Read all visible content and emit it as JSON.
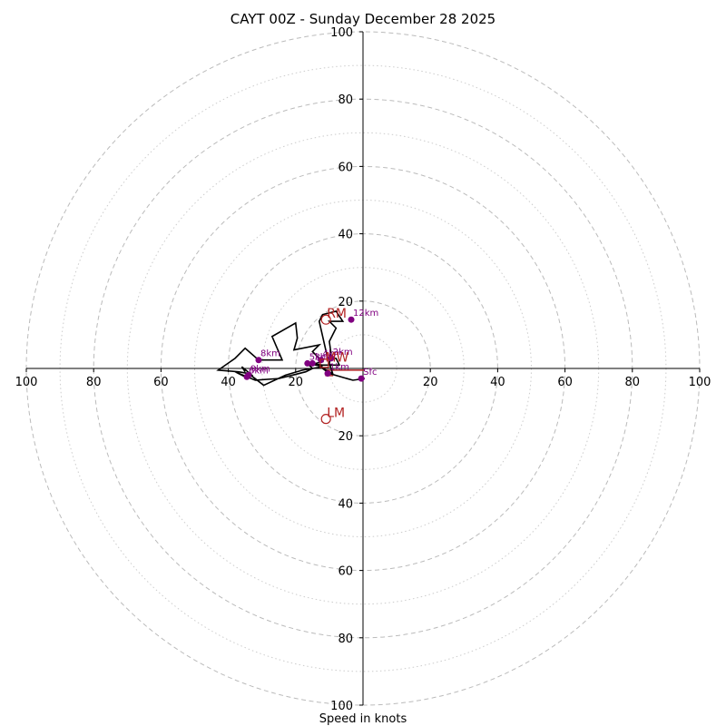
{
  "chart_data": {
    "type": "hodograph",
    "title": "CAYT 00Z - Sunday December 28 2025",
    "xlabel": "Speed in knots",
    "xlim": [
      -100,
      100
    ],
    "ylim": [
      -100,
      100
    ],
    "major_rings": [
      20,
      40,
      60,
      80,
      100
    ],
    "minor_rings": [
      10,
      30,
      50,
      70,
      90
    ],
    "x_tick_labels": [
      "100",
      "80",
      "60",
      "40",
      "20",
      "20",
      "40",
      "60",
      "80",
      "100"
    ],
    "y_tick_labels": [
      "100",
      "80",
      "60",
      "40",
      "20",
      "20",
      "40",
      "60",
      "80",
      "100"
    ],
    "x_tick_values": [
      -100,
      -80,
      -60,
      -40,
      -20,
      20,
      40,
      60,
      80,
      100
    ],
    "y_tick_values": [
      100,
      80,
      60,
      40,
      20,
      -20,
      -40,
      -60,
      -80,
      -100
    ],
    "trace": [
      [
        0.5,
        -3
      ],
      [
        -3,
        -3.5
      ],
      [
        -10,
        -1.5
      ],
      [
        -12,
        0
      ],
      [
        -9,
        -1.5
      ],
      [
        -10,
        1.5
      ],
      [
        -9.5,
        4.5
      ],
      [
        -10,
        8
      ],
      [
        -8,
        12
      ],
      [
        -10,
        14
      ],
      [
        -6,
        14
      ],
      [
        -8,
        17
      ],
      [
        -12,
        16
      ],
      [
        -13,
        14
      ],
      [
        -10.5,
        3
      ],
      [
        -8,
        3
      ],
      [
        -7,
        1
      ],
      [
        -12,
        1
      ],
      [
        -16,
        1.5
      ],
      [
        -12,
        0.5
      ],
      [
        -18,
        -0.5
      ],
      [
        -23,
        -2
      ],
      [
        -29.5,
        -5
      ],
      [
        -34,
        -1.5
      ],
      [
        -37,
        -1
      ],
      [
        -43,
        -0.5
      ],
      [
        -38,
        3
      ],
      [
        -35,
        6
      ],
      [
        -31,
        2.5
      ],
      [
        -24,
        2.5
      ],
      [
        -27,
        9.5
      ],
      [
        -20,
        13.5
      ],
      [
        -19.5,
        9
      ],
      [
        -20.5,
        5.5
      ],
      [
        -13,
        7
      ],
      [
        -15,
        5
      ],
      [
        -12,
        2
      ],
      [
        -16,
        1
      ],
      [
        -15,
        0
      ],
      [
        -17,
        -1
      ],
      [
        -21,
        -2
      ],
      [
        -25,
        -3
      ],
      [
        -32,
        -3.5
      ],
      [
        -38,
        -1
      ],
      [
        -35,
        -2.5
      ],
      [
        -33,
        -2
      ],
      [
        -36,
        0.5
      ],
      [
        -35,
        -1
      ]
    ],
    "height_markers": [
      {
        "label": "Sfc",
        "u": -0.5,
        "v": -3
      },
      {
        "label": "1km",
        "u": -10.5,
        "v": -1.5
      },
      {
        "label": "2km",
        "u": -9.5,
        "v": 3
      },
      {
        "label": "3km",
        "u": -15,
        "v": 1.5
      },
      {
        "label": "4km",
        "u": -12.5,
        "v": 2.5
      },
      {
        "label": "5km",
        "u": -16.5,
        "v": 1.5
      },
      {
        "label": "8km",
        "u": -31,
        "v": 2.5
      },
      {
        "label": "9km",
        "u": -34,
        "v": -2
      },
      {
        "label": "6km",
        "u": -34.5,
        "v": -2.5
      },
      {
        "label": "12km",
        "u": -3.5,
        "v": 14.5
      }
    ],
    "storm_motion": [
      {
        "label": "RM",
        "u": -11,
        "v": 14.5
      },
      {
        "label": "LM",
        "u": -11,
        "v": -15
      },
      {
        "label": "MW",
        "u": -11.5,
        "v": 1.5
      }
    ],
    "shear_vector": {
      "from": [
        0.5,
        -0.5
      ],
      "to": [
        -11,
        -0.5
      ]
    },
    "colors": {
      "trace": "#000000",
      "markers": "#800080",
      "storm_motion": "#b22222",
      "ring_major": "#bbbbbb",
      "ring_minor": "#cccccc"
    }
  }
}
